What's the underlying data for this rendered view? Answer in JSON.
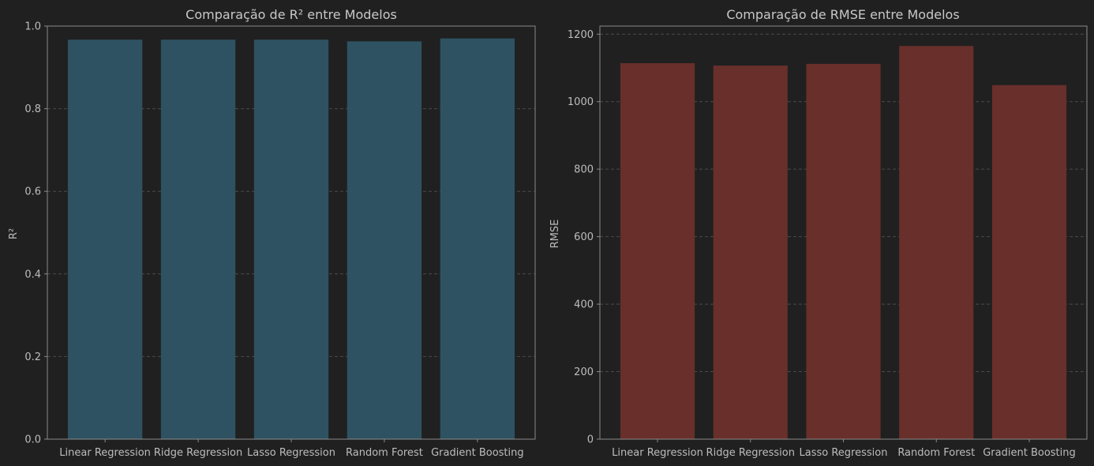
{
  "colors": {
    "background": "#202020",
    "axes_edge": "#8a8a8a",
    "grid": "#4a4a4a",
    "r2_bar": "#2e5261",
    "rmse_bar": "#682f2b"
  },
  "chart_data": [
    {
      "type": "bar",
      "title": "Comparação de R² entre Modelos",
      "xlabel": "",
      "ylabel": "R²",
      "categories": [
        "Linear Regression",
        "Ridge Regression",
        "Lasso Regression",
        "Random Forest",
        "Gradient Boosting"
      ],
      "values": [
        0.967,
        0.967,
        0.967,
        0.963,
        0.97
      ],
      "ylim": [
        0,
        1.0
      ],
      "yticks": [
        "0.0",
        "0.2",
        "0.4",
        "0.6",
        "0.8",
        "1.0"
      ],
      "grid": "y-dashed",
      "color": "#2e5261"
    },
    {
      "type": "bar",
      "title": "Comparação de RMSE entre Modelos",
      "xlabel": "",
      "ylabel": "RMSE",
      "categories": [
        "Linear Regression",
        "Ridge Regression",
        "Lasso Regression",
        "Random Forest",
        "Gradient Boosting"
      ],
      "values": [
        1114,
        1107,
        1112,
        1165,
        1049
      ],
      "ylim": [
        0,
        1224
      ],
      "yticks": [
        "0",
        "200",
        "400",
        "600",
        "800",
        "1000",
        "1200"
      ],
      "grid": "y-dashed",
      "color": "#682f2b"
    }
  ]
}
